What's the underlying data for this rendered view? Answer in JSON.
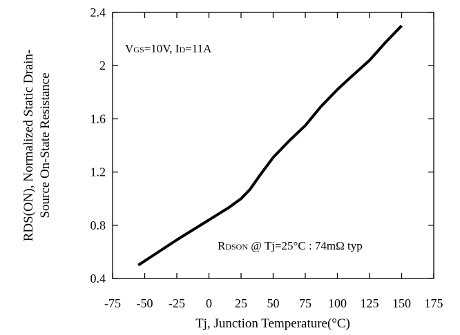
{
  "chart_data": {
    "type": "line",
    "title": "",
    "xlabel": "Tj, Junction Temperature(°C)",
    "ylabel_line1": "RDS(ON), Normalized Static Drain-",
    "ylabel_line2": "Source On-State Resistance",
    "xlim": [
      -75,
      175
    ],
    "ylim": [
      0.4,
      2.4
    ],
    "x_ticks": [
      "-75",
      "-50",
      "-25",
      "0",
      "25",
      "50",
      "75",
      "100",
      "125",
      "150",
      "175"
    ],
    "y_ticks": [
      "0.4",
      "0.8",
      "1.2",
      "1.6",
      "2",
      "2.4"
    ],
    "grid": false,
    "series": [
      {
        "x": [
          -55,
          -25,
          0,
          15,
          25,
          32,
          40,
          50,
          62,
          75,
          87,
          100,
          110,
          125,
          137,
          150
        ],
        "y": [
          0.5,
          0.69,
          0.84,
          0.93,
          1.0,
          1.07,
          1.18,
          1.31,
          1.43,
          1.55,
          1.69,
          1.82,
          1.91,
          2.04,
          2.17,
          2.3
        ],
        "color": "#000000"
      }
    ],
    "annotations": {
      "condition": {
        "v": "V",
        "gs": "GS",
        "mid": "=10V, I",
        "d": "D",
        "end": "=11A"
      },
      "typical": {
        "r": "R",
        "dson": "DSON",
        "rest": " @ Tj=25°C : 74mΩ  typ"
      }
    }
  }
}
